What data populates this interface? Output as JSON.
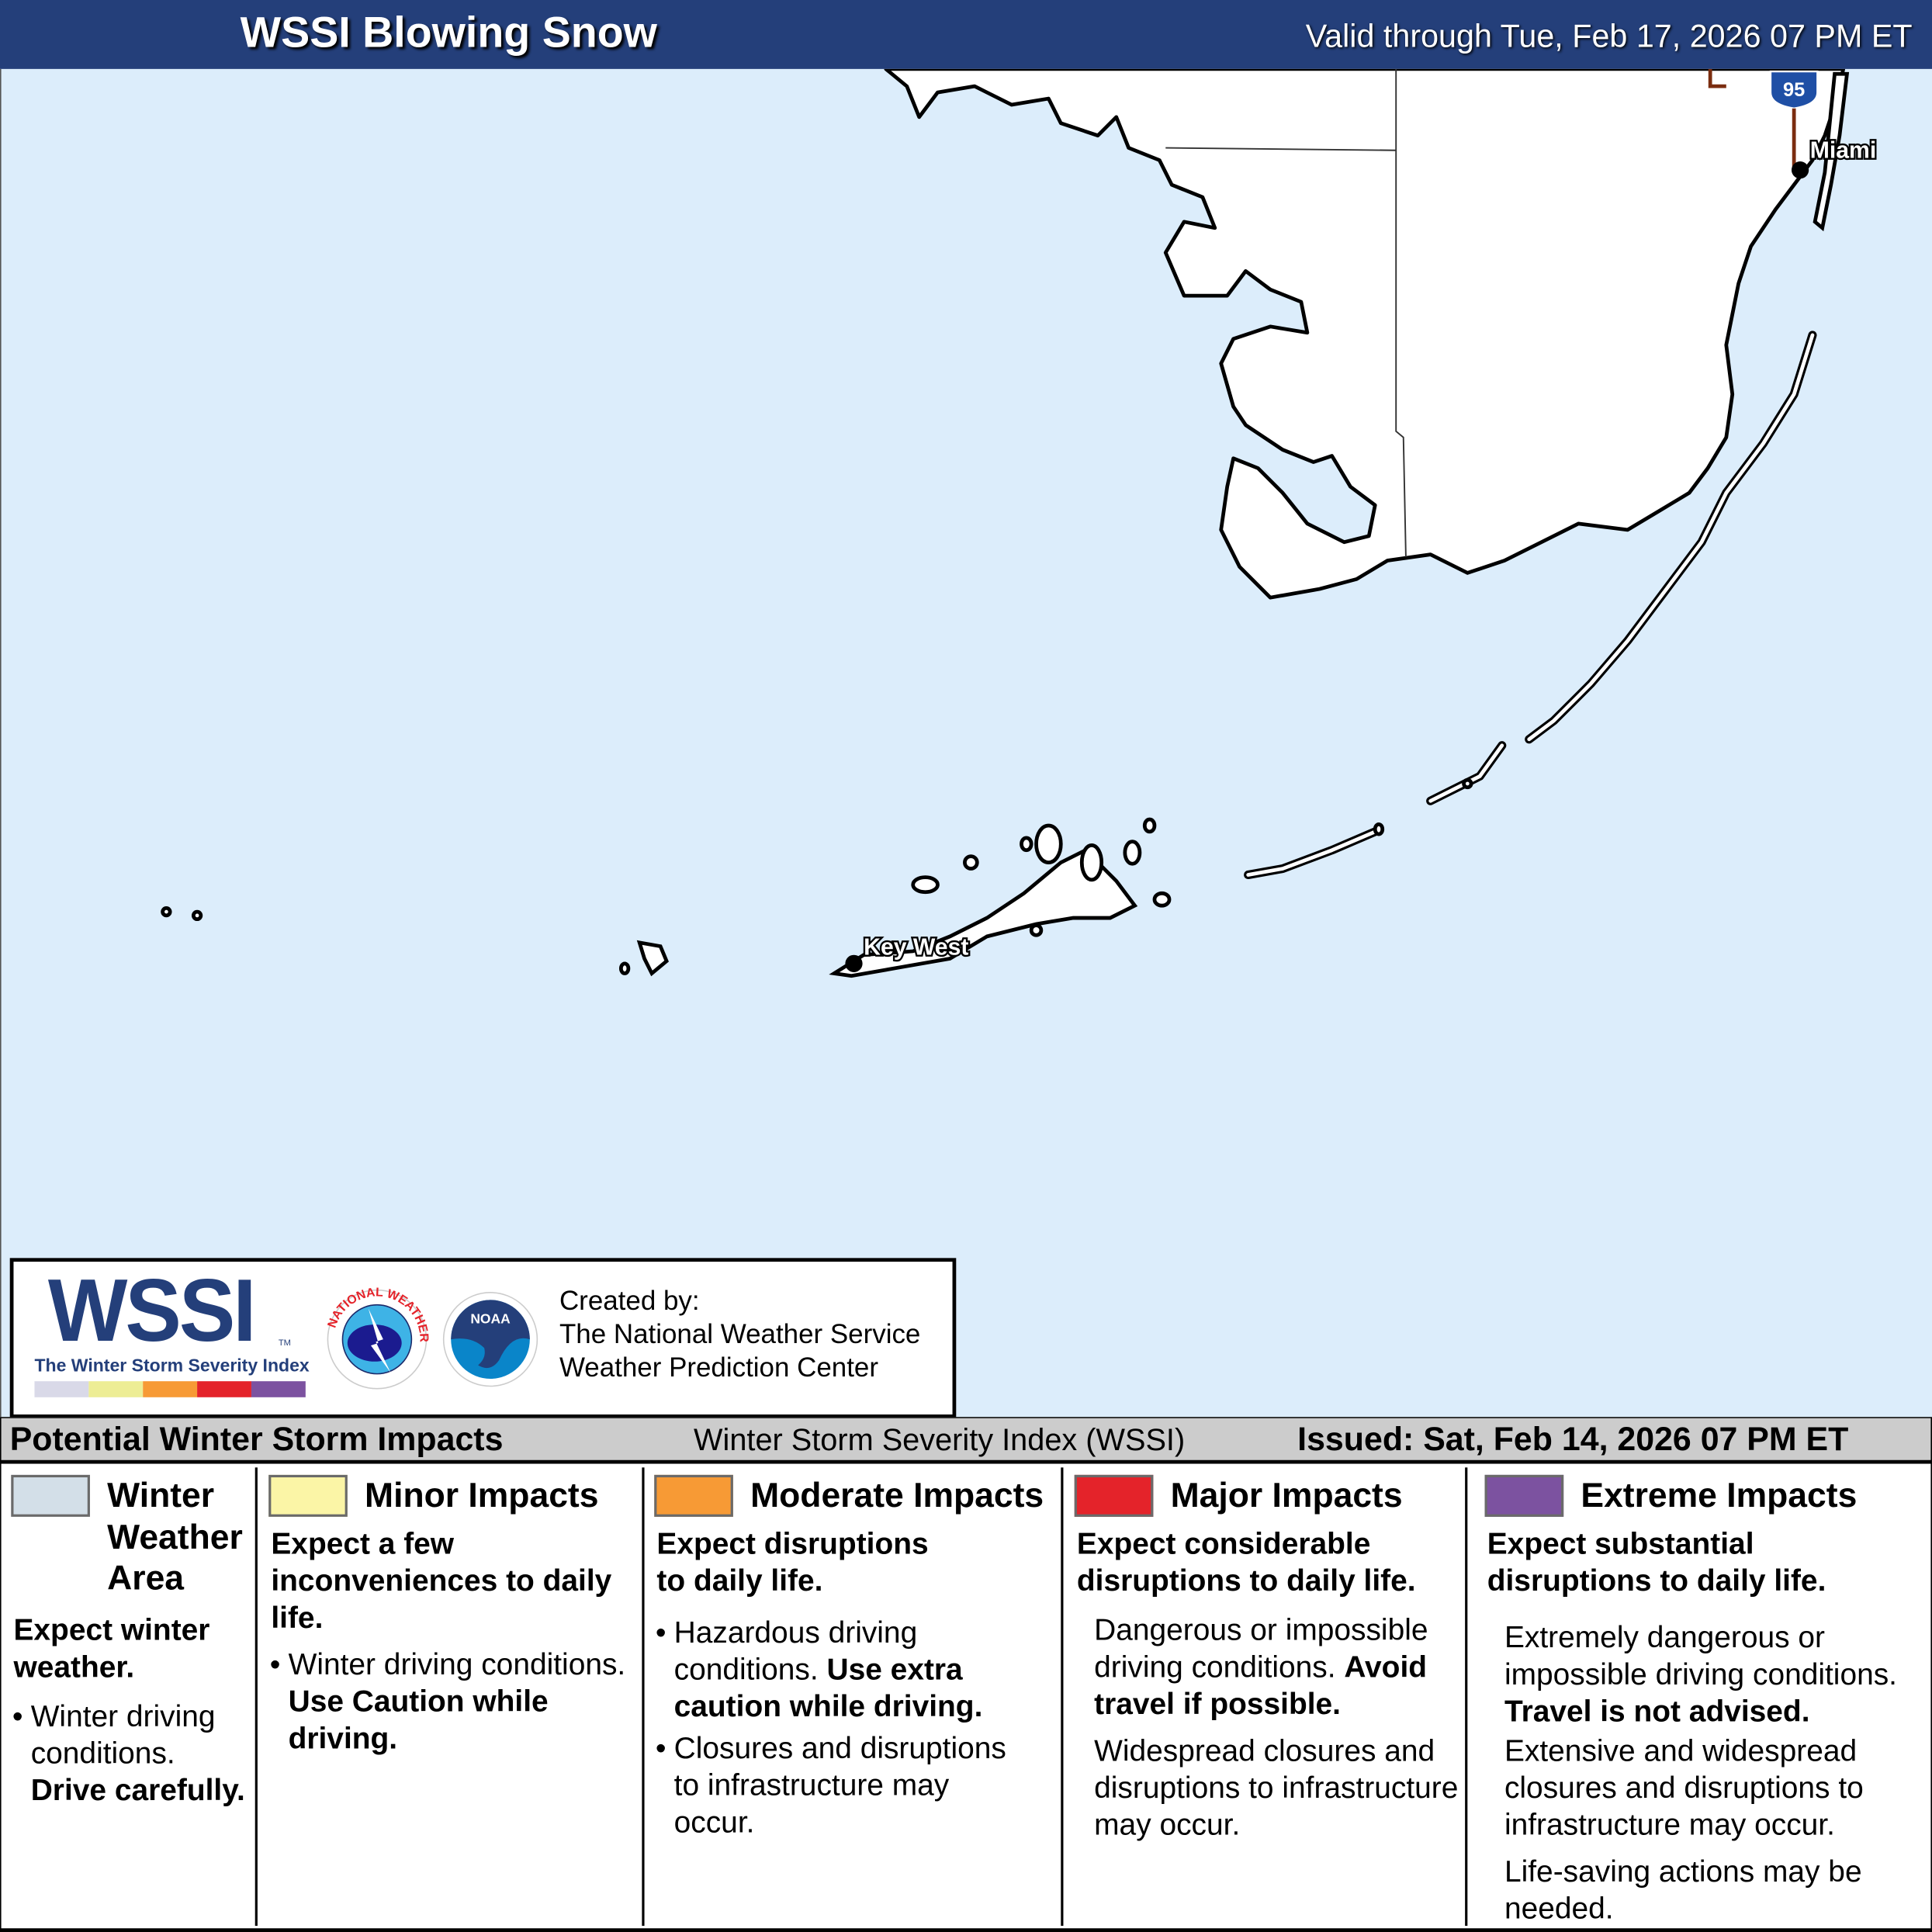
{
  "header": {
    "title": "WSSI Blowing Snow",
    "valid": "Valid through Tue, Feb 17, 2026 07 PM ET",
    "background_color": "#243f7a"
  },
  "map": {
    "water_color": "#dcedfb",
    "land_color": "#ffffff",
    "cities": [
      {
        "name": "Miami"
      },
      {
        "name": "Key West"
      }
    ],
    "highway_shield": "95"
  },
  "logo": {
    "wssi_word": "WSSI",
    "wssi_tm": "TM",
    "wssi_subtitle": "The Winter Storm Severity Index",
    "bar_colors": [
      "#d9d9e8",
      "#eded95",
      "#f79a35",
      "#e4232a",
      "#7c52a0"
    ],
    "nws_logo_text": "NATIONAL WEATHER SERVICE",
    "noaa_logo_text": "NOAA",
    "created_by": "Created by:",
    "org1": "The National Weather Service",
    "org2": "Weather Prediction Center"
  },
  "legend": {
    "heading": "Potential Winter Storm Impacts",
    "index_name": "Winter Storm Severity Index (WSSI)",
    "issued": "Issued: Sat, Feb 14, 2026 07 PM ET",
    "columns": [
      {
        "title": "Winter Weather Area",
        "color": "#d3dfe8",
        "subtitle": "Expect winter weather.",
        "p1_normal": "Winter driving conditions.",
        "p1_bold": "Drive carefully."
      },
      {
        "title": "Minor Impacts",
        "color": "#fbf5a6",
        "subtitle": "Expect a few inconveniences to daily life.",
        "p1_normal": "Winter driving conditions.",
        "p1_bold": "Use Caution while driving."
      },
      {
        "title": "Moderate Impacts",
        "color": "#f79a35",
        "subtitle": "Expect disruptions to daily life.",
        "p1_normal": "Hazardous driving conditions.",
        "p1_bold": "Use extra caution while driving.",
        "p2_normal": "Closures and disruptions to infrastructure may occur."
      },
      {
        "title": "Major Impacts",
        "color": "#e4232a",
        "subtitle": "Expect considerable disruptions to daily life.",
        "p1_normal": "Dangerous or impossible driving conditions.",
        "p1_bold": "Avoid travel if possible.",
        "p2_normal": "Widespread closures and disruptions to infrastructure may occur."
      },
      {
        "title": "Extreme Impacts",
        "color": "#7c52a0",
        "subtitle": "Expect substantial disruptions to daily life.",
        "p1_normal": "Extremely dangerous or impossible driving conditions.",
        "p1_bold": "Travel is not advised.",
        "p2_normal": "Extensive and widespread closures and disruptions to infrastructure may occur.",
        "p3_normal": "Life-saving actions may be needed."
      }
    ]
  }
}
